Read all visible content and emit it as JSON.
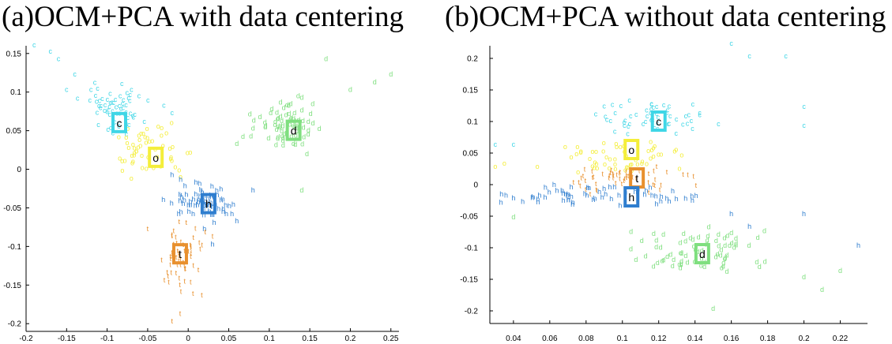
{
  "chart_data": [
    {
      "type": "scatter",
      "title": "(a)OCM+PCA with data centering",
      "xlim": [
        -0.2,
        0.26
      ],
      "ylim": [
        -0.21,
        0.16
      ],
      "xticks": [
        -0.2,
        -0.15,
        -0.1,
        -0.05,
        0,
        0.05,
        0.1,
        0.15,
        0.2,
        0.25
      ],
      "yticks": [
        0.15,
        0.1,
        0.05,
        0,
        -0.05,
        -0.1,
        -0.15,
        -0.2
      ],
      "xtick_labels": [
        "-0.2",
        "-0.15",
        "-0.1",
        "-0.05",
        "0",
        "0.05",
        "0.1",
        "0.15",
        "0.2",
        "0.25"
      ],
      "ytick_labels": [
        "0.15",
        "0.1",
        "0.05",
        "0",
        "-0.05",
        "-0.1",
        "-0.15",
        "-0.2"
      ],
      "grid": false,
      "series": [
        {
          "name": "c",
          "color": "#3fd6e6",
          "label_pos": [
            -0.085,
            0.06
          ],
          "center": [
            -0.09,
            0.075
          ],
          "spread": [
            0.035,
            0.03
          ],
          "count": 60,
          "extra": [
            [
              -0.19,
              0.158
            ],
            [
              -0.17,
              0.15
            ],
            [
              -0.16,
              0.14
            ],
            [
              -0.14,
              0.12
            ],
            [
              -0.15,
              0.1
            ],
            [
              -0.12,
              0.1
            ],
            [
              -0.07,
              0.1
            ],
            [
              -0.03,
              0.08
            ],
            [
              -0.02,
              0.07
            ]
          ]
        },
        {
          "name": "d",
          "color": "#7fdf7f",
          "label_pos": [
            0.13,
            0.05
          ],
          "center": [
            0.12,
            0.055
          ],
          "spread": [
            0.04,
            0.03
          ],
          "count": 70,
          "extra": [
            [
              0.17,
              0.14
            ],
            [
              0.25,
              0.12
            ],
            [
              0.23,
              0.11
            ],
            [
              0.2,
              0.1
            ],
            [
              0.14,
              0.09
            ],
            [
              0.08,
              0.05
            ],
            [
              0.14,
              -0.03
            ],
            [
              0.06,
              0.03
            ]
          ]
        },
        {
          "name": "o",
          "color": "#f4ee3a",
          "label_pos": [
            -0.04,
            0.015
          ],
          "center": [
            -0.045,
            0.02
          ],
          "spread": [
            0.045,
            0.03
          ],
          "count": 55,
          "extra": []
        },
        {
          "name": "h",
          "color": "#2f7ecf",
          "label_pos": [
            0.025,
            -0.045
          ],
          "center": [
            0.02,
            -0.045
          ],
          "spread": [
            0.04,
            0.022
          ],
          "count": 65,
          "extra": [
            [
              0.06,
              -0.07
            ],
            [
              0.08,
              -0.03
            ],
            [
              0.03,
              -0.1
            ],
            [
              0.02,
              -0.08
            ],
            [
              -0.02,
              -0.01
            ]
          ]
        },
        {
          "name": "t",
          "color": "#e8902e",
          "label_pos": [
            -0.01,
            -0.11
          ],
          "center": [
            -0.01,
            -0.12
          ],
          "spread": [
            0.025,
            0.045
          ],
          "count": 60,
          "extra": [
            [
              -0.02,
              -0.2
            ],
            [
              -0.01,
              -0.19
            ],
            [
              0.03,
              -0.09
            ],
            [
              -0.05,
              -0.08
            ]
          ]
        }
      ]
    },
    {
      "type": "scatter",
      "title": "(b)OCM+PCA without data centering",
      "xlim": [
        0.027,
        0.235
      ],
      "ylim": [
        -0.22,
        0.22
      ],
      "xticks": [
        0.04,
        0.06,
        0.08,
        0.1,
        0.12,
        0.14,
        0.16,
        0.18,
        0.2,
        0.22
      ],
      "yticks": [
        0.2,
        0.15,
        0.1,
        0.05,
        0,
        -0.05,
        -0.1,
        -0.15,
        -0.2
      ],
      "xtick_labels": [
        "0.04",
        "0.06",
        "0.08",
        "0.1",
        "0.12",
        "0.14",
        "0.16",
        "0.18",
        "0.2",
        "0.22"
      ],
      "ytick_labels": [
        "0.2",
        "0.15",
        "0.1",
        "0.05",
        "0",
        "-0.05",
        "-0.1",
        "-0.15",
        "-0.2"
      ],
      "grid": false,
      "series": [
        {
          "name": "c",
          "color": "#3fd6e6",
          "label_pos": [
            0.12,
            0.1
          ],
          "center": [
            0.115,
            0.1
          ],
          "spread": [
            0.03,
            0.03
          ],
          "count": 55,
          "extra": [
            [
              0.16,
              0.22
            ],
            [
              0.17,
              0.2
            ],
            [
              0.19,
              0.2
            ],
            [
              0.2,
              0.12
            ],
            [
              0.2,
              0.09
            ],
            [
              0.03,
              0.06
            ],
            [
              0.04,
              0.06
            ]
          ]
        },
        {
          "name": "o",
          "color": "#f4ee3a",
          "label_pos": [
            0.105,
            0.055
          ],
          "center": [
            0.1,
            0.04
          ],
          "spread": [
            0.04,
            0.025
          ],
          "count": 55,
          "extra": [
            [
              0.03,
              0.025
            ],
            [
              0.035,
              0.03
            ]
          ]
        },
        {
          "name": "t",
          "color": "#e8902e",
          "label_pos": [
            0.108,
            0.01
          ],
          "center": [
            0.1,
            0.005
          ],
          "spread": [
            0.035,
            0.02
          ],
          "count": 55,
          "extra": []
        },
        {
          "name": "h",
          "color": "#2f7ecf",
          "label_pos": [
            0.105,
            -0.02
          ],
          "center": [
            0.09,
            -0.02
          ],
          "spread": [
            0.045,
            0.018
          ],
          "count": 60,
          "extra": [
            [
              0.23,
              -0.1
            ],
            [
              0.2,
              -0.05
            ],
            [
              0.17,
              -0.07
            ],
            [
              0.16,
              -0.05
            ],
            [
              0.04,
              -0.025
            ]
          ]
        },
        {
          "name": "d",
          "color": "#7fdf7f",
          "label_pos": [
            0.144,
            -0.11
          ],
          "center": [
            0.145,
            -0.11
          ],
          "spread": [
            0.04,
            0.04
          ],
          "count": 75,
          "extra": [
            [
              0.2,
              -0.15
            ],
            [
              0.21,
              -0.17
            ],
            [
              0.22,
              -0.14
            ],
            [
              0.15,
              -0.2
            ],
            [
              0.19,
              -0.23
            ],
            [
              0.04,
              -0.055
            ]
          ]
        }
      ]
    }
  ]
}
